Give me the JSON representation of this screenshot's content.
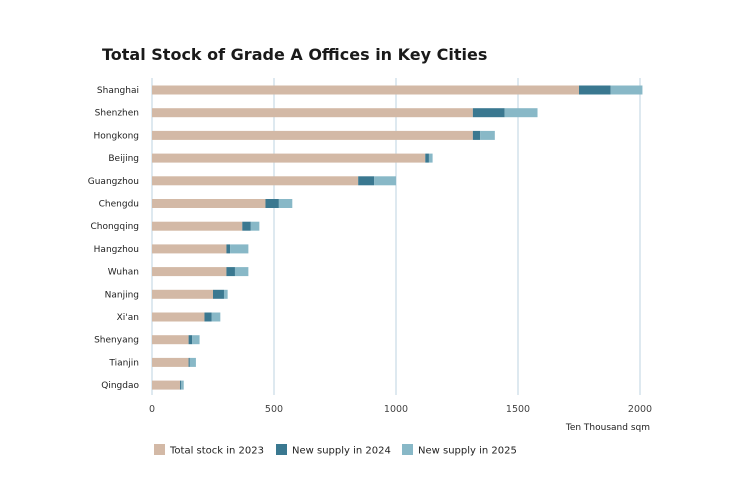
{
  "chart_data": {
    "type": "bar",
    "orientation": "horizontal",
    "stacked": true,
    "title": "Total Stock of Grade A Offices in Key Cities",
    "xlabel": "Ten Thousand sqm",
    "ylabel": "",
    "xlim": [
      0,
      2000
    ],
    "xticks": [
      0,
      500,
      1000,
      1500,
      2000
    ],
    "grid": true,
    "legend_position": "bottom",
    "categories": [
      "Shanghai",
      "Shenzhen",
      "Hongkong",
      "Beijing",
      "Guangzhou",
      "Chengdu",
      "Chongqing",
      "Hangzhou",
      "Wuhan",
      "Nanjing",
      "Xi'an",
      "Shenyang",
      "Tianjin",
      "Qingdao"
    ],
    "series": [
      {
        "name": "Total stock in 2023",
        "color": "#d3b9a6",
        "values": [
          1750,
          1315,
          1315,
          1120,
          845,
          465,
          370,
          305,
          305,
          250,
          215,
          150,
          150,
          115
        ]
      },
      {
        "name": "New supply in 2024",
        "color": "#3a7890",
        "values": [
          130,
          130,
          30,
          15,
          65,
          55,
          35,
          15,
          35,
          45,
          30,
          15,
          5,
          5
        ]
      },
      {
        "name": "New supply in 2025",
        "color": "#88b8c7",
        "values": [
          130,
          135,
          60,
          15,
          90,
          55,
          35,
          75,
          55,
          15,
          35,
          30,
          25,
          10
        ]
      }
    ]
  }
}
